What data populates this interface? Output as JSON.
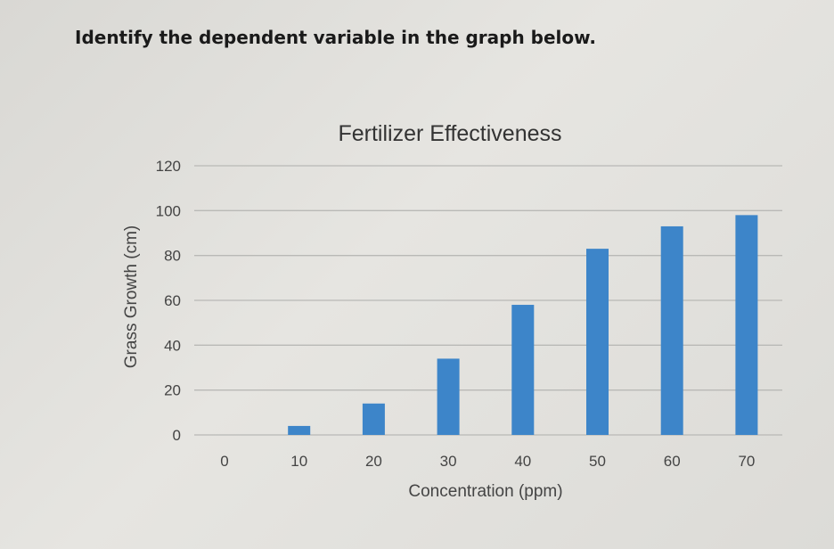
{
  "question": "Identify the dependent variable in the graph below.",
  "chart_data": {
    "type": "bar",
    "title": "Fertilizer Effectiveness",
    "xlabel": "Concentration (ppm)",
    "ylabel": "Grass Growth (cm)",
    "x_ticks": [
      "0",
      "10",
      "20",
      "30",
      "40",
      "50",
      "60",
      "70"
    ],
    "y_ticks": [
      "0",
      "20",
      "40",
      "60",
      "80",
      "100",
      "120"
    ],
    "categories": [
      "10",
      "20",
      "30",
      "40",
      "50",
      "60",
      "70"
    ],
    "values": [
      4,
      14,
      34,
      58,
      83,
      93,
      98
    ],
    "ylim": [
      0,
      120
    ],
    "grid": true,
    "bar_color": "#3d85c9",
    "grid_color": "#b9b9b6"
  }
}
